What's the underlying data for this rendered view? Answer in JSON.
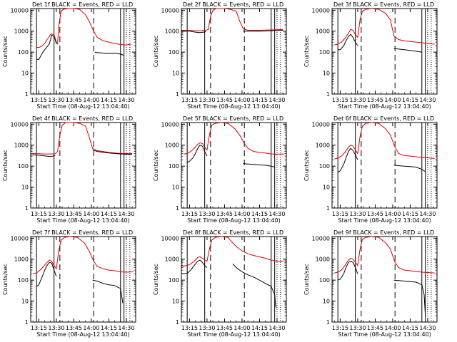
{
  "ylabel": "Counts/sec",
  "xlabel": "Start Time (08-Aug-12 13:04:40)",
  "title_suffix": "BLACK = Events, RED = LLD",
  "x_ticks": [
    "13:15",
    "13:30",
    "13:45",
    "14:00",
    "14:15",
    "14:30"
  ],
  "y_ticks": [
    "1",
    "10",
    "100",
    "1000",
    "10000"
  ],
  "colors": {
    "events": "#000000",
    "lld": "#e00000"
  },
  "chart_data": [
    {
      "type": "line",
      "title": "Det 1f",
      "xlim_min": [
        8,
        98
      ],
      "ylim": [
        1,
        12000
      ],
      "y_scale": "log",
      "events": [
        [
          13,
          45
        ],
        [
          15,
          45
        ],
        [
          18,
          90
        ],
        [
          20,
          130
        ],
        [
          22,
          180
        ],
        [
          24,
          250
        ],
        [
          25,
          400
        ],
        [
          26,
          650
        ],
        [
          27,
          600
        ],
        [
          28,
          550
        ],
        [
          29,
          400
        ],
        [
          30,
          250
        ]
      ],
      "lld": [
        [
          13,
          170
        ],
        [
          15,
          165
        ],
        [
          18,
          200
        ],
        [
          20,
          260
        ],
        [
          22,
          400
        ],
        [
          24,
          550
        ],
        [
          25,
          700
        ],
        [
          26,
          750
        ],
        [
          27,
          700
        ],
        [
          28,
          650
        ],
        [
          29,
          450
        ],
        [
          30,
          300
        ],
        [
          31,
          250
        ],
        [
          32,
          1600
        ],
        [
          34,
          9000
        ],
        [
          36,
          11000
        ],
        [
          40,
          12000
        ],
        [
          45,
          12000
        ],
        [
          50,
          11000
        ],
        [
          55,
          6000
        ],
        [
          58,
          3000
        ],
        [
          62,
          1000
        ],
        [
          65,
          500
        ],
        [
          70,
          350
        ],
        [
          75,
          300
        ],
        [
          80,
          260
        ],
        [
          85,
          230
        ],
        [
          90,
          220
        ],
        [
          94,
          240
        ]
      ],
      "events2": [
        [
          63,
          100
        ],
        [
          65,
          95
        ],
        [
          70,
          90
        ],
        [
          75,
          85
        ],
        [
          80,
          90
        ],
        [
          85,
          80
        ],
        [
          88,
          70
        ]
      ]
    },
    {
      "type": "line",
      "title": "Det 2f",
      "xlim_min": [
        8,
        98
      ],
      "ylim": [
        1,
        12000
      ],
      "y_scale": "log",
      "events": [
        [
          8,
          1000
        ],
        [
          15,
          1000
        ],
        [
          20,
          900
        ],
        [
          24,
          850
        ],
        [
          27,
          900
        ],
        [
          29,
          950
        ]
      ],
      "lld": [
        [
          8,
          1100
        ],
        [
          15,
          1100
        ],
        [
          20,
          1050
        ],
        [
          25,
          1050
        ],
        [
          29,
          1100
        ],
        [
          31,
          1200
        ],
        [
          33,
          5000
        ],
        [
          35,
          10000
        ],
        [
          38,
          12000
        ],
        [
          45,
          12000
        ],
        [
          50,
          11000
        ],
        [
          55,
          9000
        ],
        [
          58,
          3000
        ],
        [
          61,
          1300
        ],
        [
          65,
          1100
        ],
        [
          75,
          1100
        ],
        [
          85,
          1150
        ],
        [
          95,
          1200
        ]
      ],
      "events2": [
        [
          61,
          1000
        ],
        [
          65,
          1000
        ],
        [
          75,
          1000
        ],
        [
          85,
          1050
        ],
        [
          95,
          1100
        ]
      ]
    },
    {
      "type": "line",
      "title": "Det 3f",
      "xlim_min": [
        8,
        98
      ],
      "ylim": [
        1,
        12000
      ],
      "y_scale": "log",
      "events": [
        [
          13,
          130
        ],
        [
          15,
          130
        ],
        [
          18,
          200
        ],
        [
          20,
          350
        ],
        [
          22,
          550
        ],
        [
          24,
          700
        ],
        [
          26,
          500
        ],
        [
          28,
          300
        ],
        [
          30,
          200
        ]
      ],
      "lld": [
        [
          10,
          220
        ],
        [
          13,
          240
        ],
        [
          16,
          300
        ],
        [
          19,
          450
        ],
        [
          22,
          800
        ],
        [
          24,
          1200
        ],
        [
          26,
          1100
        ],
        [
          28,
          700
        ],
        [
          30,
          500
        ],
        [
          32,
          3500
        ],
        [
          34,
          9000
        ],
        [
          37,
          11000
        ],
        [
          42,
          12000
        ],
        [
          48,
          11000
        ],
        [
          54,
          7000
        ],
        [
          58,
          3500
        ],
        [
          61,
          600
        ],
        [
          65,
          400
        ],
        [
          70,
          350
        ],
        [
          75,
          320
        ],
        [
          80,
          300
        ],
        [
          85,
          280
        ],
        [
          90,
          260
        ],
        [
          96,
          240
        ]
      ],
      "events2": [
        [
          61,
          150
        ],
        [
          65,
          140
        ],
        [
          70,
          130
        ],
        [
          75,
          120
        ],
        [
          80,
          110
        ],
        [
          85,
          100
        ]
      ]
    },
    {
      "type": "line",
      "title": "Det 4f",
      "xlim_min": [
        8,
        98
      ],
      "ylim": [
        1,
        12000
      ],
      "y_scale": "log",
      "events": [
        [
          8,
          350
        ],
        [
          15,
          330
        ],
        [
          20,
          310
        ],
        [
          24,
          290
        ],
        [
          27,
          300
        ],
        [
          29,
          320
        ]
      ],
      "lld": [
        [
          8,
          400
        ],
        [
          15,
          390
        ],
        [
          20,
          380
        ],
        [
          25,
          380
        ],
        [
          29,
          390
        ],
        [
          31,
          500
        ],
        [
          33,
          3000
        ],
        [
          35,
          9000
        ],
        [
          38,
          12000
        ],
        [
          45,
          12000
        ],
        [
          50,
          11000
        ],
        [
          55,
          8000
        ],
        [
          58,
          2500
        ],
        [
          61,
          700
        ],
        [
          65,
          550
        ],
        [
          75,
          450
        ],
        [
          85,
          400
        ],
        [
          95,
          400
        ]
      ],
      "events2": [
        [
          61,
          600
        ],
        [
          65,
          500
        ],
        [
          75,
          420
        ],
        [
          85,
          380
        ],
        [
          95,
          360
        ]
      ]
    },
    {
      "type": "line",
      "title": "Det 5f",
      "xlim_min": [
        8,
        98
      ],
      "ylim": [
        1,
        12000
      ],
      "y_scale": "log",
      "events": [
        [
          13,
          150
        ],
        [
          15,
          170
        ],
        [
          18,
          250
        ],
        [
          20,
          400
        ],
        [
          22,
          700
        ],
        [
          24,
          1000
        ],
        [
          26,
          900
        ],
        [
          28,
          500
        ],
        [
          30,
          300
        ]
      ],
      "lld": [
        [
          10,
          380
        ],
        [
          13,
          400
        ],
        [
          16,
          500
        ],
        [
          19,
          700
        ],
        [
          22,
          1100
        ],
        [
          24,
          1300
        ],
        [
          26,
          1200
        ],
        [
          28,
          800
        ],
        [
          30,
          600
        ],
        [
          32,
          3000
        ],
        [
          34,
          9000
        ],
        [
          37,
          11000
        ],
        [
          42,
          12000
        ],
        [
          48,
          11000
        ],
        [
          54,
          6000
        ],
        [
          58,
          3000
        ],
        [
          62,
          1200
        ],
        [
          65,
          700
        ],
        [
          70,
          500
        ],
        [
          75,
          450
        ],
        [
          80,
          420
        ],
        [
          85,
          380
        ],
        [
          90,
          370
        ],
        [
          96,
          380
        ]
      ],
      "events2": [
        [
          61,
          130
        ],
        [
          65,
          125
        ],
        [
          70,
          120
        ],
        [
          75,
          115
        ],
        [
          80,
          110
        ],
        [
          85,
          100
        ],
        [
          88,
          90
        ]
      ]
    },
    {
      "type": "line",
      "title": "Det 6f",
      "xlim_min": [
        8,
        98
      ],
      "ylim": [
        1,
        12000
      ],
      "y_scale": "log",
      "events": [
        [
          13,
          50
        ],
        [
          15,
          60
        ],
        [
          18,
          120
        ],
        [
          20,
          250
        ],
        [
          22,
          500
        ],
        [
          24,
          700
        ],
        [
          26,
          550
        ],
        [
          28,
          350
        ],
        [
          30,
          200
        ]
      ],
      "lld": [
        [
          10,
          220
        ],
        [
          13,
          240
        ],
        [
          16,
          300
        ],
        [
          19,
          450
        ],
        [
          22,
          800
        ],
        [
          24,
          1000
        ],
        [
          26,
          900
        ],
        [
          28,
          600
        ],
        [
          30,
          400
        ],
        [
          32,
          2500
        ],
        [
          34,
          8000
        ],
        [
          37,
          11000
        ],
        [
          42,
          12000
        ],
        [
          48,
          11000
        ],
        [
          54,
          6000
        ],
        [
          58,
          3000
        ],
        [
          62,
          800
        ],
        [
          65,
          400
        ],
        [
          70,
          320
        ],
        [
          75,
          300
        ],
        [
          80,
          280
        ],
        [
          85,
          260
        ],
        [
          90,
          250
        ],
        [
          96,
          230
        ]
      ],
      "events2": [
        [
          61,
          110
        ],
        [
          65,
          105
        ],
        [
          70,
          100
        ],
        [
          75,
          95
        ],
        [
          80,
          90
        ],
        [
          85,
          70
        ],
        [
          88,
          55
        ]
      ]
    },
    {
      "type": "line",
      "title": "Det 7f",
      "xlim_min": [
        8,
        98
      ],
      "ylim": [
        1,
        12000
      ],
      "y_scale": "log",
      "events": [
        [
          13,
          50
        ],
        [
          15,
          60
        ],
        [
          18,
          150
        ],
        [
          20,
          300
        ],
        [
          22,
          500
        ],
        [
          24,
          700
        ],
        [
          26,
          650
        ],
        [
          28,
          300
        ],
        [
          30,
          150
        ]
      ],
      "lld": [
        [
          10,
          200
        ],
        [
          13,
          220
        ],
        [
          16,
          300
        ],
        [
          19,
          450
        ],
        [
          22,
          700
        ],
        [
          24,
          900
        ],
        [
          26,
          800
        ],
        [
          28,
          500
        ],
        [
          30,
          350
        ],
        [
          32,
          2500
        ],
        [
          34,
          8000
        ],
        [
          37,
          11000
        ],
        [
          42,
          12000
        ],
        [
          48,
          11000
        ],
        [
          54,
          6000
        ],
        [
          58,
          2500
        ],
        [
          62,
          800
        ],
        [
          65,
          450
        ],
        [
          70,
          350
        ],
        [
          75,
          300
        ],
        [
          80,
          280
        ],
        [
          85,
          250
        ],
        [
          90,
          240
        ],
        [
          96,
          250
        ]
      ],
      "events2": [
        [
          61,
          100
        ],
        [
          65,
          90
        ],
        [
          70,
          70
        ],
        [
          75,
          60
        ],
        [
          80,
          55
        ],
        [
          85,
          40
        ],
        [
          87,
          8
        ]
      ]
    },
    {
      "type": "line",
      "title": "Det 8f",
      "xlim_min": [
        8,
        98
      ],
      "ylim": [
        1,
        12000
      ],
      "y_scale": "log",
      "events": [
        [
          8,
          200
        ],
        [
          13,
          210
        ],
        [
          16,
          300
        ],
        [
          19,
          500
        ],
        [
          22,
          800
        ],
        [
          24,
          900
        ],
        [
          26,
          700
        ],
        [
          28,
          500
        ],
        [
          30,
          400
        ]
      ],
      "lld": [
        [
          8,
          450
        ],
        [
          13,
          500
        ],
        [
          16,
          600
        ],
        [
          19,
          800
        ],
        [
          22,
          1200
        ],
        [
          24,
          1300
        ],
        [
          26,
          1100
        ],
        [
          28,
          900
        ],
        [
          30,
          800
        ],
        [
          32,
          3000
        ],
        [
          34,
          8000
        ],
        [
          37,
          11000
        ],
        [
          42,
          12000
        ],
        [
          48,
          11000
        ],
        [
          52,
          6000
        ],
        [
          55,
          4000
        ],
        [
          60,
          2500
        ],
        [
          65,
          1800
        ],
        [
          70,
          1500
        ],
        [
          75,
          1300
        ],
        [
          80,
          1100
        ],
        [
          85,
          900
        ],
        [
          90,
          800
        ],
        [
          96,
          800
        ]
      ],
      "events2": [
        [
          52,
          600
        ],
        [
          55,
          400
        ],
        [
          60,
          250
        ],
        [
          65,
          180
        ],
        [
          70,
          140
        ],
        [
          75,
          100
        ],
        [
          80,
          70
        ],
        [
          85,
          50
        ],
        [
          88,
          20
        ],
        [
          89,
          5
        ]
      ]
    },
    {
      "type": "line",
      "title": "Det 9f",
      "xlim_min": [
        8,
        98
      ],
      "ylim": [
        1,
        12000
      ],
      "y_scale": "log",
      "events": [
        [
          13,
          100
        ],
        [
          15,
          110
        ],
        [
          18,
          200
        ],
        [
          20,
          400
        ],
        [
          22,
          700
        ],
        [
          24,
          800
        ],
        [
          26,
          700
        ],
        [
          28,
          400
        ],
        [
          30,
          200
        ]
      ],
      "lld": [
        [
          10,
          220
        ],
        [
          13,
          240
        ],
        [
          16,
          300
        ],
        [
          19,
          500
        ],
        [
          22,
          900
        ],
        [
          24,
          1100
        ],
        [
          26,
          1000
        ],
        [
          28,
          700
        ],
        [
          30,
          500
        ],
        [
          32,
          3000
        ],
        [
          34,
          9000
        ],
        [
          37,
          11000
        ],
        [
          42,
          12000
        ],
        [
          48,
          11000
        ],
        [
          54,
          6000
        ],
        [
          58,
          3000
        ],
        [
          62,
          700
        ],
        [
          65,
          400
        ],
        [
          70,
          300
        ],
        [
          75,
          280
        ],
        [
          80,
          260
        ],
        [
          85,
          240
        ],
        [
          90,
          230
        ],
        [
          96,
          220
        ]
      ],
      "events2": [
        [
          61,
          100
        ],
        [
          65,
          95
        ],
        [
          70,
          90
        ],
        [
          75,
          85
        ],
        [
          80,
          80
        ],
        [
          85,
          60
        ],
        [
          87,
          20
        ],
        [
          88,
          2
        ]
      ]
    }
  ]
}
